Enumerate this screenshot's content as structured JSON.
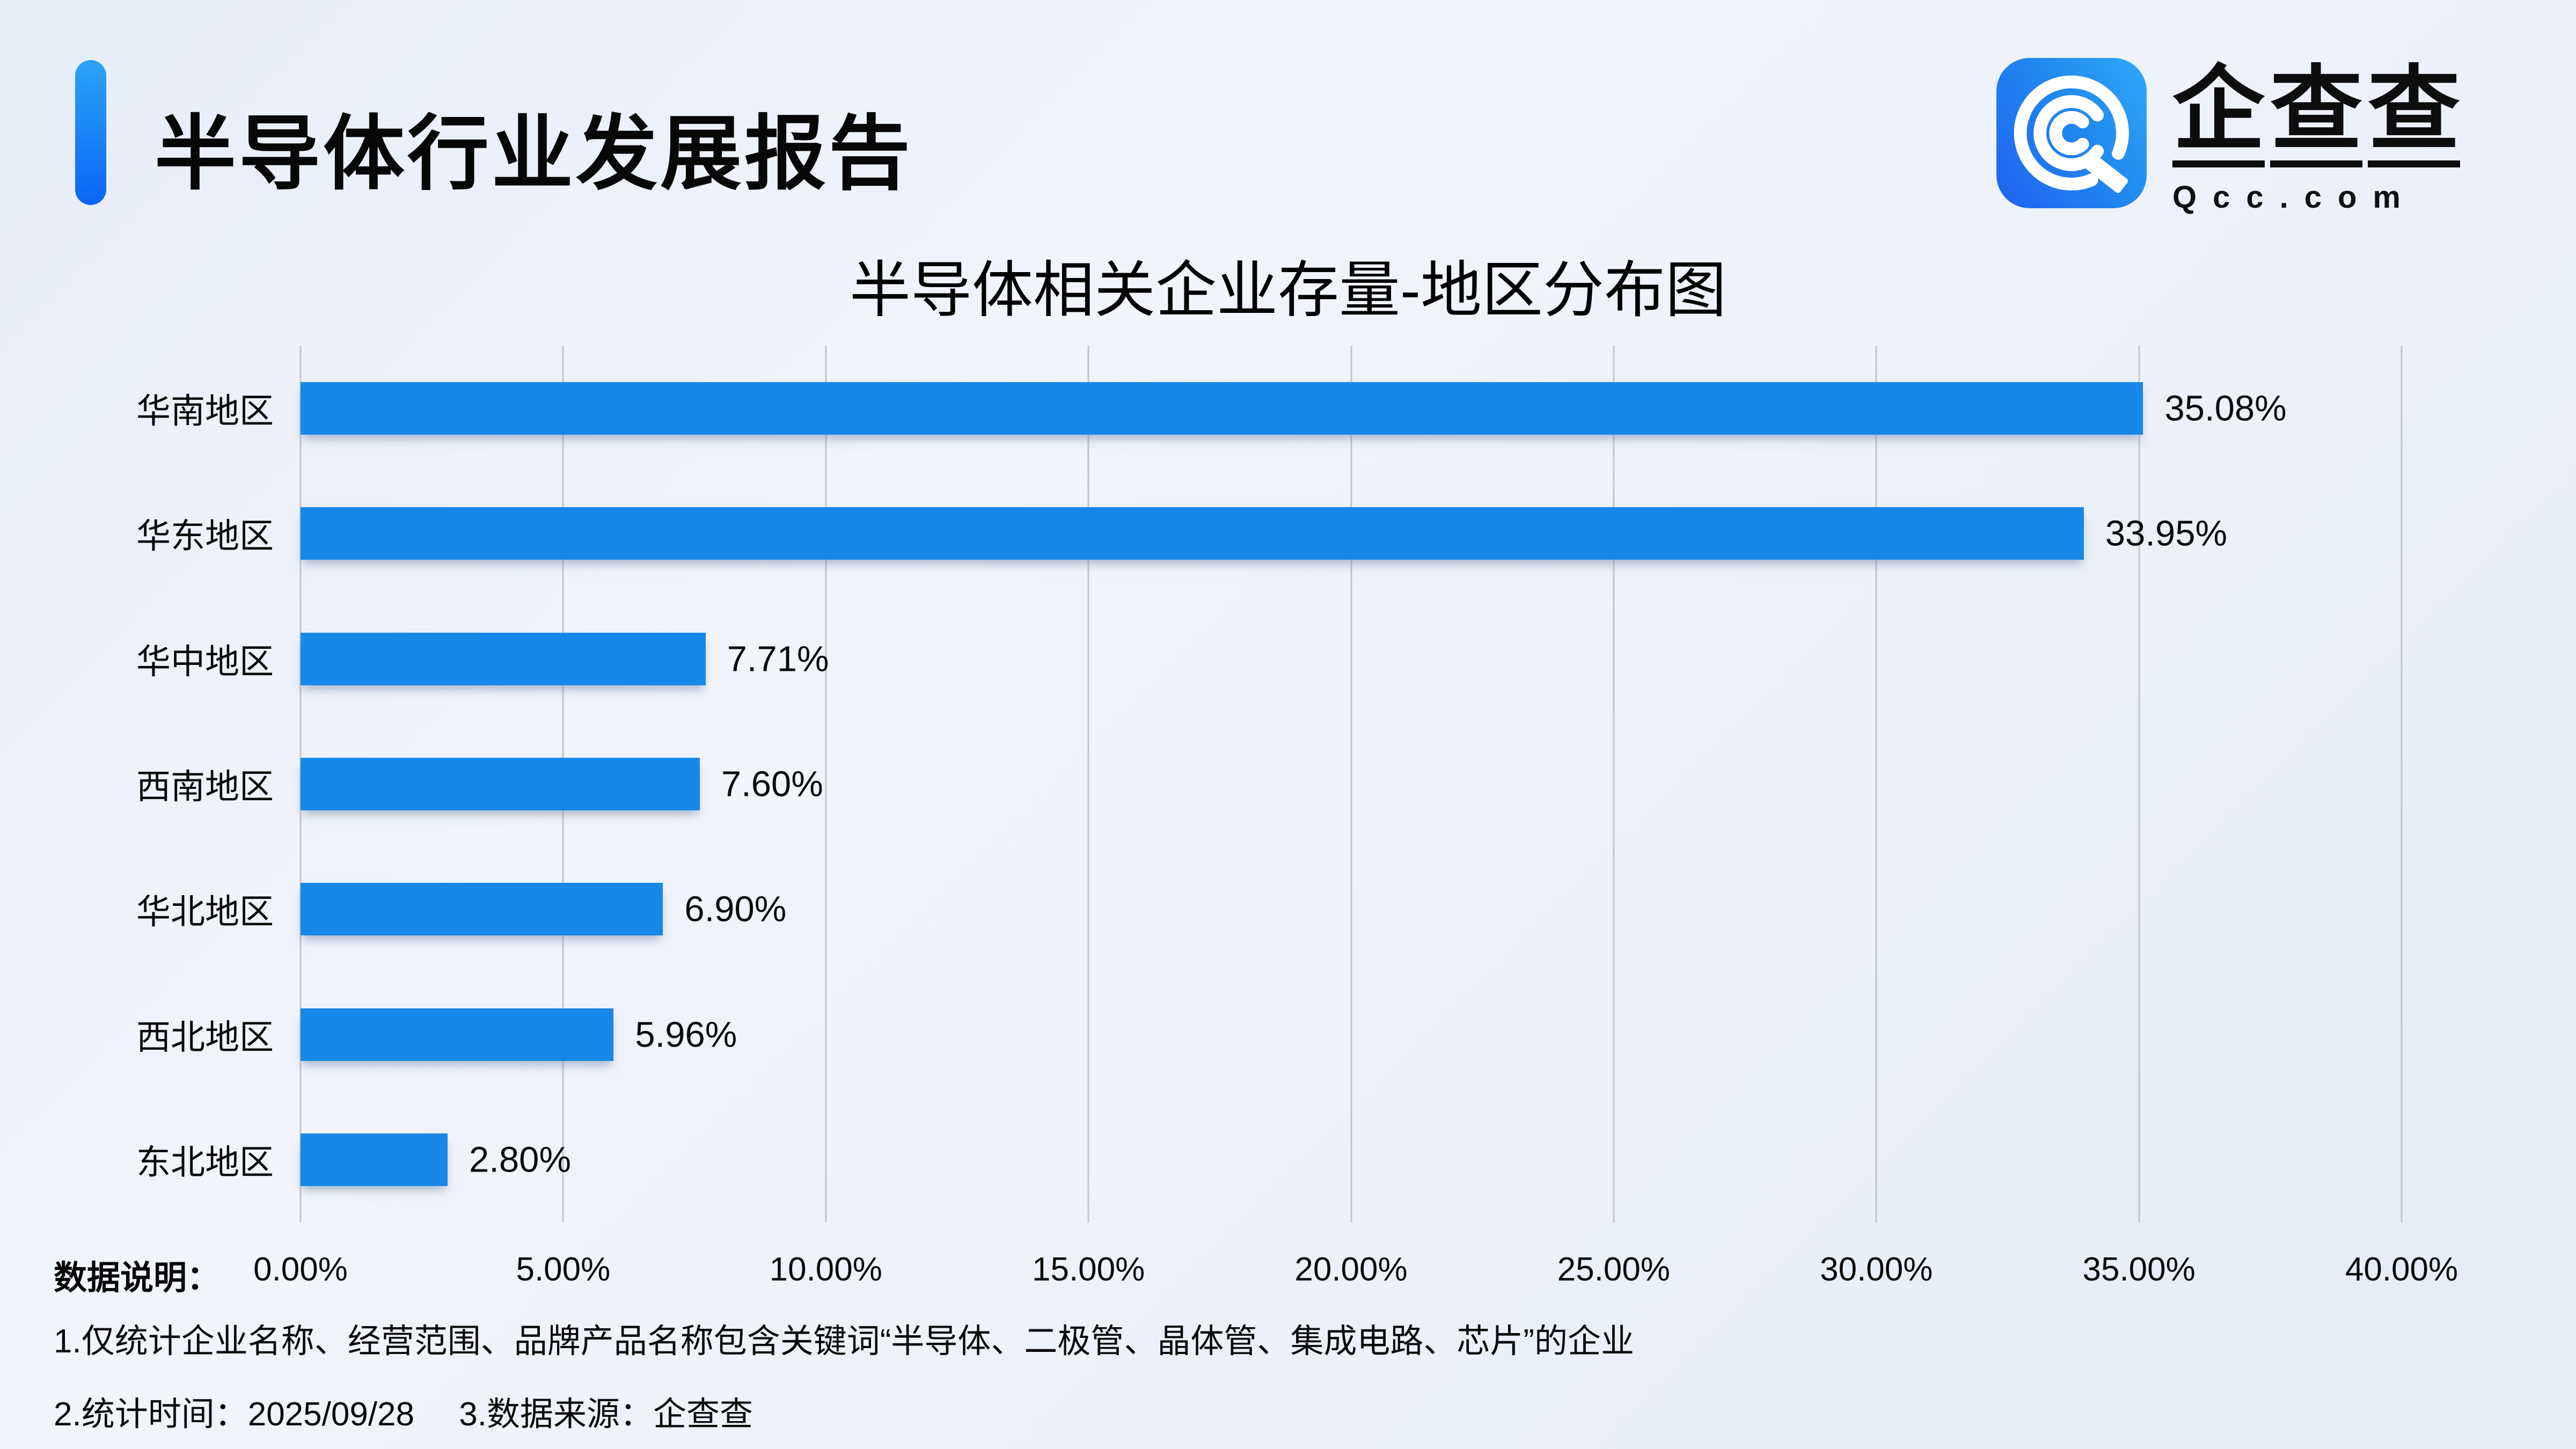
{
  "header": {
    "title": "半导体行业发展报告",
    "accent_top_color": "#2ba3f6",
    "accent_bottom_color": "#0a66f6"
  },
  "logo": {
    "icon": "qcc-logo-icon",
    "icon_gradient": [
      "#1f63f0",
      "#2fa9f8"
    ],
    "brand_chars": [
      "企",
      "查",
      "查"
    ],
    "domain": "Qcc.com"
  },
  "chart_data": {
    "type": "bar",
    "orientation": "horizontal",
    "title": "半导体相关企业存量-地区分布图",
    "categories": [
      "华南地区",
      "华东地区",
      "华中地区",
      "西南地区",
      "华北地区",
      "西北地区",
      "东北地区"
    ],
    "values": [
      35.08,
      33.95,
      7.71,
      7.6,
      6.9,
      5.96,
      2.8
    ],
    "value_labels": [
      "35.08%",
      "33.95%",
      "7.71%",
      "7.60%",
      "6.90%",
      "5.96%",
      "2.80%"
    ],
    "xlim": [
      0,
      40
    ],
    "x_ticks": [
      "0.00%",
      "5.00%",
      "10.00%",
      "15.00%",
      "20.00%",
      "25.00%",
      "30.00%",
      "35.00%",
      "40.00%"
    ],
    "bar_color": "#1787e8",
    "grid": true,
    "gridline_color": "#c2c5cc",
    "legend": "none"
  },
  "footer": {
    "data_note_label": "数据说明：",
    "note1": "1.仅统计企业名称、经营范围、品牌产品名称包含关键词“半导体、二极管、晶体管、集成电路、芯片”的企业",
    "note2_time": "2.统计时间：2025/09/28",
    "note2_source": "3.数据来源：企查查"
  }
}
